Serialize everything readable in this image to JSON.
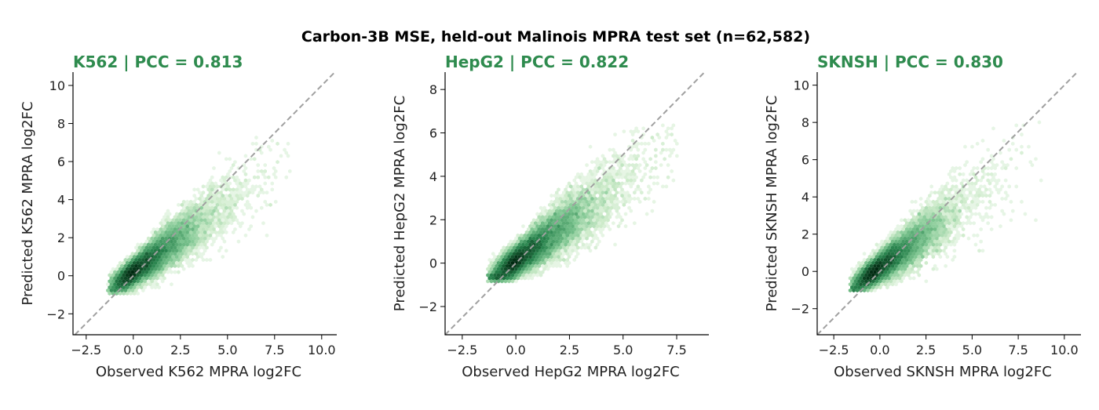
{
  "figure": {
    "suptitle": "Carbon-3B MSE, held-out Malinois MPRA test set (n=62,582)",
    "title_color": "#2e8b4e",
    "density_color": "#2b8a3e",
    "diagonal_color": "#a0a0a0"
  },
  "chart_data": [
    {
      "type": "hexbin-scatter",
      "title": "K562 | PCC = 0.813",
      "xlabel": "Observed K562 MPRA log2FC",
      "ylabel": "Predicted K562 MPRA log2FC",
      "xlim": [
        -3.2,
        10.8
      ],
      "ylim": [
        -3.1,
        10.7
      ],
      "xticks": [
        -2.5,
        0.0,
        2.5,
        5.0,
        7.5,
        10.0
      ],
      "xticklabels": [
        "−2.5",
        "0.0",
        "2.5",
        "5.0",
        "7.5",
        "10.0"
      ],
      "yticks": [
        -2,
        0,
        2,
        4,
        6,
        8,
        10
      ],
      "yticklabels": [
        "−2",
        "0",
        "2",
        "4",
        "6",
        "8",
        "10"
      ],
      "n_points": 62582,
      "pcc": 0.813,
      "diagonal": "y = x",
      "density_core": [
        0.0,
        0.2
      ],
      "x_extent": [
        -1.3,
        8.3
      ],
      "y_extent": [
        -0.9,
        7.4
      ]
    },
    {
      "type": "hexbin-scatter",
      "title": "HepG2 | PCC = 0.822",
      "xlabel": "Observed HepG2 MPRA log2FC",
      "ylabel": "Predicted HepG2 MPRA log2FC",
      "xlim": [
        -3.3,
        9.0
      ],
      "ylim": [
        -3.3,
        8.8
      ],
      "xticks": [
        -2.5,
        0.0,
        2.5,
        5.0,
        7.5
      ],
      "xticklabels": [
        "−2.5",
        "0.0",
        "2.5",
        "5.0",
        "7.5"
      ],
      "yticks": [
        -2,
        0,
        2,
        4,
        6,
        8
      ],
      "yticklabels": [
        "−2",
        "0",
        "2",
        "4",
        "6",
        "8"
      ],
      "n_points": 62582,
      "pcc": 0.822,
      "diagonal": "y = x",
      "density_core": [
        0.0,
        0.1
      ],
      "x_extent": [
        -1.3,
        7.6
      ],
      "y_extent": [
        -0.8,
        6.4
      ]
    },
    {
      "type": "hexbin-scatter",
      "title": "SKNSH | PCC = 0.830",
      "xlabel": "Observed SKNSH MPRA log2FC",
      "ylabel": "Predicted SKNSH MPRA log2FC",
      "xlim": [
        -3.4,
        10.9
      ],
      "ylim": [
        -3.4,
        10.7
      ],
      "xticks": [
        -2.5,
        0.0,
        2.5,
        5.0,
        7.5,
        10.0
      ],
      "xticklabels": [
        "−2.5",
        "0.0",
        "2.5",
        "5.0",
        "7.5",
        "10.0"
      ],
      "yticks": [
        -2,
        0,
        2,
        4,
        6,
        8,
        10
      ],
      "yticklabels": [
        "−2",
        "0",
        "2",
        "4",
        "6",
        "8",
        "10"
      ],
      "n_points": 62582,
      "pcc": 0.83,
      "diagonal": "y = x",
      "density_core": [
        -0.3,
        0.0
      ],
      "x_extent": [
        -1.6,
        8.7
      ],
      "y_extent": [
        -1.1,
        8.2
      ]
    }
  ]
}
